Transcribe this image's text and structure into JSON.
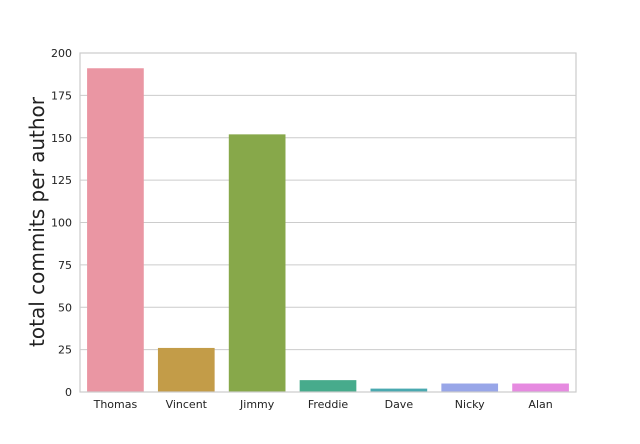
{
  "chart_data": {
    "type": "bar",
    "title": "",
    "xlabel": "",
    "ylabel": "total commits per author",
    "categories": [
      "Thomas",
      "Vincent",
      "Jimmy",
      "Freddie",
      "Dave",
      "Nicky",
      "Alan"
    ],
    "values": [
      191,
      26,
      152,
      7,
      2,
      5,
      5
    ],
    "ylim": [
      0,
      200
    ],
    "yticks": [
      0,
      25,
      50,
      75,
      100,
      125,
      150,
      175,
      200
    ],
    "grid": true,
    "legend": "none",
    "colors": [
      "#ea96a3",
      "#c39c48",
      "#87a84a",
      "#47ab8c",
      "#4aa9b0",
      "#98a6e8",
      "#e68ae0"
    ]
  }
}
